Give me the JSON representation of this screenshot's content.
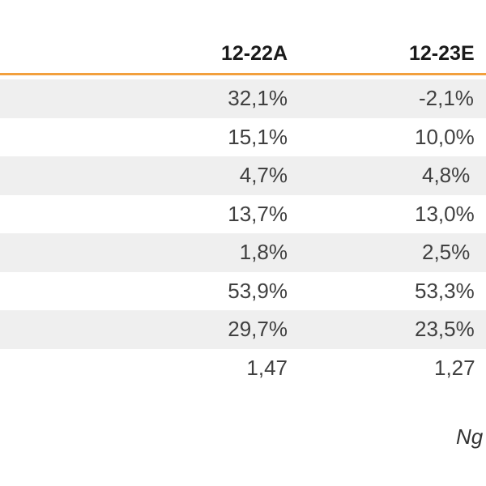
{
  "table": {
    "columns": [
      "12-22A",
      "12-23E"
    ],
    "rows": [
      {
        "v1": "32,1%",
        "v2": "-2,1%"
      },
      {
        "v1": "15,1%",
        "v2": "10,0%"
      },
      {
        "v1": "4,7%",
        "v2": "4,8%"
      },
      {
        "v1": "13,7%",
        "v2": "13,0%"
      },
      {
        "v1": "1,8%",
        "v2": "2,5%"
      },
      {
        "v1": "53,9%",
        "v2": "53,3%"
      },
      {
        "v1": "29,7%",
        "v2": "23,5%"
      },
      {
        "v1": "1,47",
        "v2": "1,27"
      }
    ]
  },
  "source": "Ng",
  "colors": {
    "accent_rule": "#f2a03d",
    "row_shade": "#efefef"
  }
}
